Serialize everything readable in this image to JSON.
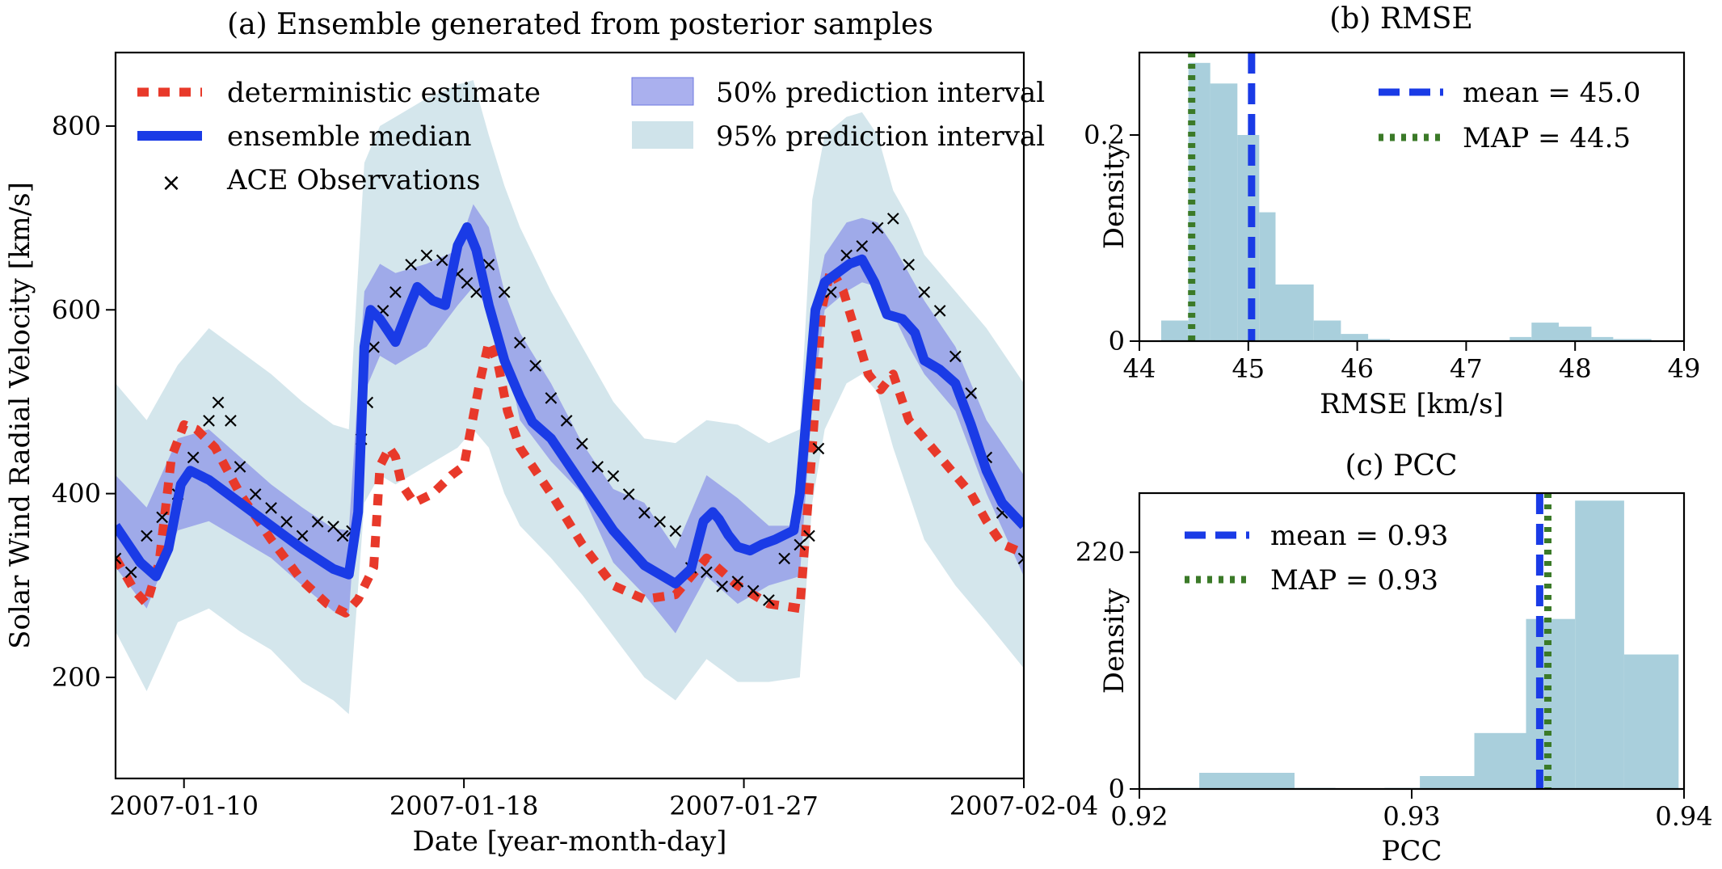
{
  "chart_data": [
    {
      "id": "a",
      "type": "line",
      "title": "(a) Ensemble generated from posterior samples",
      "xlabel": "Date [year-month-day]",
      "ylabel": "Solar Wind Radial Velocity [km/s]",
      "xlim": [
        0,
        29.2
      ],
      "ylim": [
        90,
        880
      ],
      "x_ticks": [
        {
          "x": 2.2,
          "label": "2007-01-10"
        },
        {
          "x": 11.2,
          "label": "2007-01-18"
        },
        {
          "x": 20.2,
          "label": "2007-01-27"
        },
        {
          "x": 29.2,
          "label": "2007-02-04"
        }
      ],
      "y_ticks": [
        200,
        400,
        600,
        800
      ],
      "legend": [
        {
          "key": "deterministic",
          "label": "deterministic estimate"
        },
        {
          "key": "median",
          "label": "ensemble median"
        },
        {
          "key": "obs",
          "label": "ACE Observations"
        },
        {
          "key": "pi50",
          "label": "50% prediction interval"
        },
        {
          "key": "pi95",
          "label": "95% prediction interval"
        }
      ],
      "colors": {
        "deterministic": "#e8392a",
        "median": "#1a3be6",
        "obs": "#000000",
        "pi50": "#8d95e8",
        "pi95": "#cfe3ea"
      },
      "series": [
        {
          "name": "ensemble median",
          "x": [
            0,
            0.8,
            1.3,
            1.7,
            2.1,
            2.4,
            3.0,
            4.0,
            5.0,
            6.0,
            7.0,
            7.5,
            7.8,
            8.0,
            8.2,
            8.5,
            9.0,
            9.4,
            9.7,
            10.2,
            10.6,
            11.0,
            11.3,
            11.6,
            12.0,
            12.5,
            13.0,
            13.4,
            14.0,
            15.0,
            16.0,
            17.0,
            18.0,
            18.5,
            18.9,
            19.2,
            19.4,
            19.7,
            20.0,
            20.4,
            20.8,
            21.2,
            21.8,
            22.0,
            22.3,
            22.5,
            22.8,
            23.2,
            23.6,
            24.0,
            24.4,
            24.8,
            25.3,
            25.7,
            26.0,
            26.5,
            27.0,
            27.5,
            28.0,
            28.5,
            29.2
          ],
          "y": [
            365,
            325,
            310,
            340,
            410,
            425,
            415,
            390,
            365,
            340,
            318,
            312,
            380,
            560,
            600,
            590,
            565,
            600,
            625,
            610,
            605,
            670,
            690,
            665,
            605,
            545,
            505,
            478,
            460,
            410,
            360,
            322,
            302,
            318,
            370,
            380,
            372,
            355,
            342,
            338,
            345,
            350,
            360,
            400,
            520,
            600,
            630,
            640,
            650,
            655,
            630,
            595,
            590,
            575,
            545,
            535,
            520,
            475,
            425,
            390,
            365
          ]
        },
        {
          "name": "deterministic estimate",
          "x": [
            0,
            0.6,
            1.0,
            1.4,
            1.8,
            2.2,
            2.6,
            3.2,
            4.0,
            5.0,
            6.0,
            6.8,
            7.4,
            7.8,
            8.3,
            8.5,
            8.8,
            9.0,
            9.2,
            9.6,
            10.2,
            10.8,
            11.2,
            11.7,
            12.0,
            12.3,
            12.6,
            13.0,
            14.0,
            15.0,
            16.0,
            17.0,
            18.0,
            19.0,
            20.0,
            21.0,
            22.0,
            22.4,
            22.7,
            23.0,
            23.4,
            23.8,
            24.2,
            24.6,
            25.0,
            25.5,
            26.0,
            26.5,
            27.0,
            27.5,
            28.0,
            28.5,
            29.2
          ],
          "y": [
            330,
            295,
            280,
            325,
            440,
            475,
            470,
            450,
            400,
            350,
            305,
            280,
            270,
            285,
            320,
            430,
            450,
            440,
            410,
            390,
            400,
            420,
            430,
            520,
            565,
            540,
            490,
            450,
            400,
            345,
            300,
            285,
            290,
            330,
            300,
            280,
            275,
            450,
            600,
            645,
            620,
            575,
            530,
            513,
            530,
            480,
            460,
            440,
            420,
            400,
            370,
            345,
            335
          ]
        },
        {
          "name": "50% prediction interval",
          "x": [
            0,
            1.0,
            2.0,
            3.0,
            4.0,
            5.0,
            6.0,
            7.0,
            7.5,
            8.0,
            8.5,
            9.0,
            10.0,
            11.0,
            11.5,
            12.0,
            12.5,
            13.0,
            14.0,
            15.0,
            16.0,
            17.0,
            18.0,
            19.0,
            20.0,
            21.0,
            22.0,
            22.4,
            22.8,
            23.5,
            24.0,
            24.5,
            25.0,
            25.5,
            26.0,
            27.0,
            28.0,
            29.2
          ],
          "upper": [
            420,
            385,
            460,
            470,
            440,
            410,
            385,
            362,
            360,
            620,
            650,
            640,
            650,
            665,
            715,
            690,
            620,
            575,
            520,
            455,
            405,
            390,
            340,
            420,
            395,
            365,
            365,
            590,
            660,
            695,
            700,
            695,
            670,
            640,
            610,
            560,
            480,
            420
          ],
          "lower": [
            320,
            275,
            360,
            370,
            350,
            330,
            300,
            272,
            268,
            510,
            550,
            540,
            560,
            605,
            625,
            600,
            560,
            480,
            435,
            400,
            325,
            290,
            248,
            310,
            280,
            300,
            310,
            500,
            600,
            620,
            630,
            625,
            595,
            560,
            530,
            490,
            400,
            310
          ]
        },
        {
          "name": "95% prediction interval",
          "x": [
            0,
            1.0,
            2.0,
            3.0,
            4.0,
            5.0,
            6.0,
            7.0,
            7.5,
            8.0,
            8.5,
            9.0,
            10.0,
            11.0,
            11.5,
            12.0,
            12.5,
            13.0,
            14.0,
            15.0,
            16.0,
            17.0,
            18.0,
            19.0,
            20.0,
            21.0,
            22.0,
            22.4,
            22.8,
            23.5,
            24.0,
            24.5,
            25.0,
            25.5,
            26.0,
            27.0,
            28.0,
            29.2
          ],
          "upper": [
            520,
            480,
            540,
            580,
            555,
            530,
            500,
            475,
            470,
            760,
            800,
            810,
            830,
            845,
            850,
            790,
            735,
            690,
            620,
            560,
            500,
            460,
            455,
            480,
            475,
            455,
            470,
            720,
            790,
            810,
            815,
            790,
            730,
            700,
            660,
            620,
            580,
            520
          ],
          "lower": [
            250,
            185,
            260,
            275,
            250,
            230,
            195,
            175,
            160,
            390,
            420,
            410,
            430,
            450,
            470,
            450,
            400,
            365,
            330,
            290,
            245,
            200,
            175,
            220,
            195,
            195,
            200,
            390,
            470,
            520,
            530,
            510,
            450,
            400,
            350,
            300,
            260,
            210
          ]
        },
        {
          "name": "ACE Observations",
          "x": [
            0,
            0.5,
            1.0,
            1.5,
            2.0,
            2.5,
            3.0,
            3.3,
            3.7,
            4.0,
            4.5,
            5.0,
            5.5,
            6.0,
            6.5,
            7.0,
            7.3,
            7.6,
            7.9,
            8.1,
            8.3,
            8.6,
            9.0,
            9.5,
            10.0,
            10.5,
            11.0,
            11.3,
            11.6,
            12.0,
            12.5,
            13.0,
            13.5,
            14.0,
            14.5,
            15.0,
            15.5,
            16.0,
            16.5,
            17.0,
            17.5,
            18.0,
            18.5,
            19.0,
            19.5,
            20.0,
            20.5,
            21.0,
            21.5,
            22.0,
            22.3,
            22.6,
            23.0,
            23.5,
            24.0,
            24.5,
            25.0,
            25.5,
            26.0,
            26.5,
            27.0,
            27.5,
            28.0,
            28.5,
            29.2
          ],
          "y": [
            330,
            315,
            355,
            375,
            400,
            440,
            480,
            500,
            480,
            430,
            400,
            385,
            370,
            355,
            370,
            365,
            355,
            360,
            460,
            500,
            560,
            600,
            620,
            650,
            660,
            655,
            640,
            630,
            620,
            650,
            620,
            565,
            540,
            505,
            480,
            455,
            430,
            420,
            400,
            380,
            370,
            360,
            320,
            315,
            300,
            305,
            295,
            285,
            330,
            345,
            355,
            450,
            620,
            660,
            670,
            690,
            700,
            650,
            620,
            600,
            550,
            510,
            440,
            380,
            330
          ]
        }
      ]
    },
    {
      "id": "b",
      "type": "histogram",
      "title": "(b) RMSE",
      "xlabel": "RMSE [km/s]",
      "ylabel": "Density",
      "xlim": [
        44,
        49
      ],
      "ylim": [
        0,
        0.28
      ],
      "x_ticks": [
        44,
        45,
        46,
        47,
        48,
        49
      ],
      "y_ticks": [
        {
          "v": 0,
          "label": "0"
        },
        {
          "v": 0.2,
          "label": "0.2"
        }
      ],
      "bins": [
        {
          "x0": 44.2,
          "x1": 44.45,
          "v": 0.02
        },
        {
          "x0": 44.45,
          "x1": 44.65,
          "v": 0.27
        },
        {
          "x0": 44.65,
          "x1": 44.9,
          "v": 0.25
        },
        {
          "x0": 44.9,
          "x1": 45.1,
          "v": 0.2
        },
        {
          "x0": 45.1,
          "x1": 45.25,
          "v": 0.125
        },
        {
          "x0": 45.25,
          "x1": 45.6,
          "v": 0.055
        },
        {
          "x0": 45.6,
          "x1": 45.85,
          "v": 0.02
        },
        {
          "x0": 45.85,
          "x1": 46.1,
          "v": 0.007
        },
        {
          "x0": 46.1,
          "x1": 46.3,
          "v": 0.002
        },
        {
          "x0": 47.4,
          "x1": 47.6,
          "v": 0.004
        },
        {
          "x0": 47.6,
          "x1": 47.85,
          "v": 0.018
        },
        {
          "x0": 47.85,
          "x1": 48.15,
          "v": 0.014
        },
        {
          "x0": 48.15,
          "x1": 48.35,
          "v": 0.004
        },
        {
          "x0": 48.35,
          "x1": 48.7,
          "v": 0.002
        }
      ],
      "mean_x": 45.03,
      "map_x": 44.48,
      "legend": [
        {
          "key": "mean",
          "label": "mean = 45.0"
        },
        {
          "key": "map",
          "label": "MAP = 44.5"
        }
      ],
      "colors": {
        "bar": "#a9cfdc",
        "mean": "#1a3be6",
        "map": "#3b7a28"
      }
    },
    {
      "id": "c",
      "type": "histogram",
      "title": "(c) PCC",
      "xlabel": "PCC",
      "ylabel": "Density",
      "xlim": [
        0.92,
        0.94
      ],
      "ylim": [
        0,
        275
      ],
      "x_ticks": [
        0.92,
        0.93,
        0.94
      ],
      "y_ticks": [
        {
          "v": 0,
          "label": "0"
        },
        {
          "v": 220,
          "label": "220"
        }
      ],
      "bins": [
        {
          "x0": 0.9207,
          "x1": 0.9222,
          "v": 1
        },
        {
          "x0": 0.9222,
          "x1": 0.9257,
          "v": 15
        },
        {
          "x0": 0.9257,
          "x1": 0.9272,
          "v": 1
        },
        {
          "x0": 0.929,
          "x1": 0.9303,
          "v": 1
        },
        {
          "x0": 0.9303,
          "x1": 0.9323,
          "v": 12
        },
        {
          "x0": 0.9323,
          "x1": 0.9342,
          "v": 52
        },
        {
          "x0": 0.9342,
          "x1": 0.936,
          "v": 158
        },
        {
          "x0": 0.936,
          "x1": 0.9378,
          "v": 268
        },
        {
          "x0": 0.9378,
          "x1": 0.9398,
          "v": 125
        }
      ],
      "mean_x": 0.9347,
      "map_x": 0.935,
      "legend": [
        {
          "key": "mean",
          "label": "mean = 0.93"
        },
        {
          "key": "map",
          "label": "MAP = 0.93"
        }
      ],
      "colors": {
        "bar": "#a9cfdc",
        "mean": "#1a3be6",
        "map": "#3b7a28"
      }
    }
  ]
}
